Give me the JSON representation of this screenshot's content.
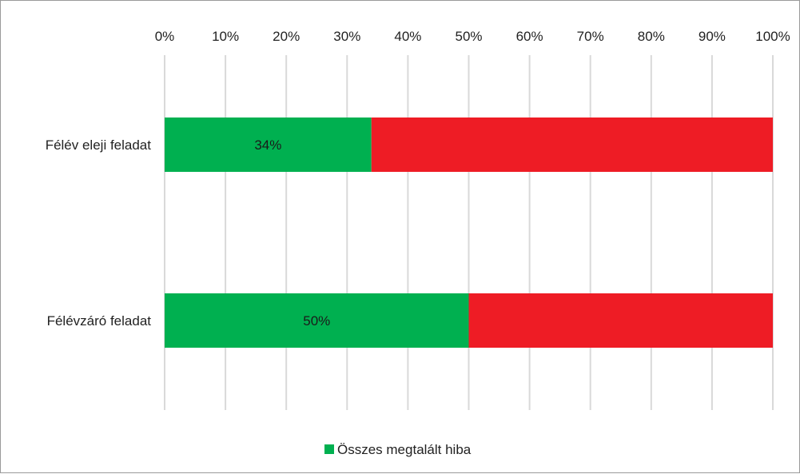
{
  "chart_data": {
    "type": "bar",
    "orientation": "horizontal",
    "stacked": true,
    "percent_stacked": true,
    "categories": [
      "Félév eleji feladat",
      "Félévzáró feladat"
    ],
    "series": [
      {
        "name": "Összes megtalált hiba",
        "values": [
          34,
          50
        ],
        "color": "#00b050",
        "data_labels": [
          "34%",
          "50%"
        ]
      },
      {
        "values": [
          66,
          50
        ],
        "color": "#ee1c25"
      }
    ],
    "x_ticks": [
      "0%",
      "10%",
      "20%",
      "30%",
      "40%",
      "50%",
      "60%",
      "70%",
      "80%",
      "90%",
      "100%"
    ],
    "xlim": [
      0,
      100
    ],
    "x_axis_position": "top",
    "grid": true,
    "grid_color": "#d9d9d9",
    "legend": {
      "position": "bottom",
      "entries": [
        "Összes megtalált hiba"
      ]
    }
  }
}
